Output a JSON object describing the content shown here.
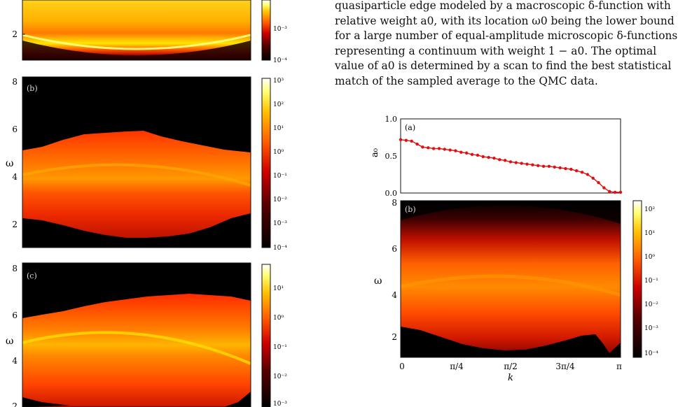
{
  "text": {
    "lines": [
      "quasiparticle edge modeled by a macroscopic δ-function with",
      "relative weight a0, with its location ω0 being the lower bound",
      "for a large number of equal-amplitude microscopic δ-functions",
      "representing a continuum with weight 1 − a0.  The optimal",
      "value of a0 is determined by a scan to find the best statistical",
      "match of the sampled average to the QMC data."
    ]
  },
  "left_figure": {
    "panels": [
      {
        "label": "",
        "y_ticks": [
          "2"
        ],
        "colorbar_ticks": [
          "10⁻³",
          "10⁻⁴"
        ]
      },
      {
        "label": "(b)",
        "ylabel": "ω",
        "y_ticks": [
          "8",
          "6",
          "4",
          "2"
        ],
        "colorbar_ticks": [
          "10³",
          "10²",
          "10¹",
          "10⁰",
          "10⁻¹",
          "10⁻²",
          "10⁻³",
          "10⁻⁴"
        ]
      },
      {
        "label": "(c)",
        "ylabel": "ω",
        "y_ticks": [
          "8",
          "6",
          "4",
          "2"
        ],
        "colorbar_ticks": [
          "10¹",
          "10⁰",
          "10⁻¹",
          "10⁻²",
          "10⁻³"
        ]
      }
    ]
  },
  "right_figure": {
    "panel_a": {
      "label": "(a)",
      "ylabel": "a₀",
      "y_ticks": [
        "1.0",
        "0.5",
        "0.0"
      ]
    },
    "panel_b": {
      "label": "(b)",
      "ylabel": "ω",
      "xlabel": "k",
      "y_ticks": [
        "8",
        "6",
        "4",
        "2"
      ],
      "x_ticks": [
        "0",
        "π/4",
        "π/2",
        "3π/4",
        "π"
      ],
      "colorbar_ticks": [
        "10²",
        "10¹",
        "10⁰",
        "10⁻¹",
        "10⁻²",
        "10⁻³",
        "10⁻⁴"
      ]
    }
  },
  "chart_data": {
    "type": "line",
    "x": [
      0,
      0.0785,
      0.157,
      0.236,
      0.314,
      0.393,
      0.471,
      0.55,
      0.628,
      0.707,
      0.785,
      0.864,
      0.942,
      1.021,
      1.1,
      1.178,
      1.257,
      1.335,
      1.414,
      1.492,
      1.571,
      1.649,
      1.728,
      1.806,
      1.885,
      1.963,
      2.042,
      2.12,
      2.199,
      2.278,
      2.356,
      2.435,
      2.513,
      2.592,
      2.67,
      2.749,
      2.827,
      2.906,
      2.985,
      3.063,
      3.142
    ],
    "series": [
      {
        "values": [
          0.72,
          0.71,
          0.7,
          0.66,
          0.62,
          0.61,
          0.6,
          0.6,
          0.59,
          0.58,
          0.57,
          0.55,
          0.54,
          0.52,
          0.51,
          0.49,
          0.48,
          0.47,
          0.45,
          0.44,
          0.42,
          0.41,
          0.4,
          0.39,
          0.38,
          0.37,
          0.36,
          0.36,
          0.35,
          0.34,
          0.33,
          0.32,
          0.3,
          0.28,
          0.25,
          0.2,
          0.14,
          0.07,
          0.02,
          0.01,
          0.01
        ]
      }
    ],
    "ylabel": "a₀",
    "xlim": [
      0,
      3.142
    ],
    "ylim": [
      0,
      1.0
    ]
  }
}
